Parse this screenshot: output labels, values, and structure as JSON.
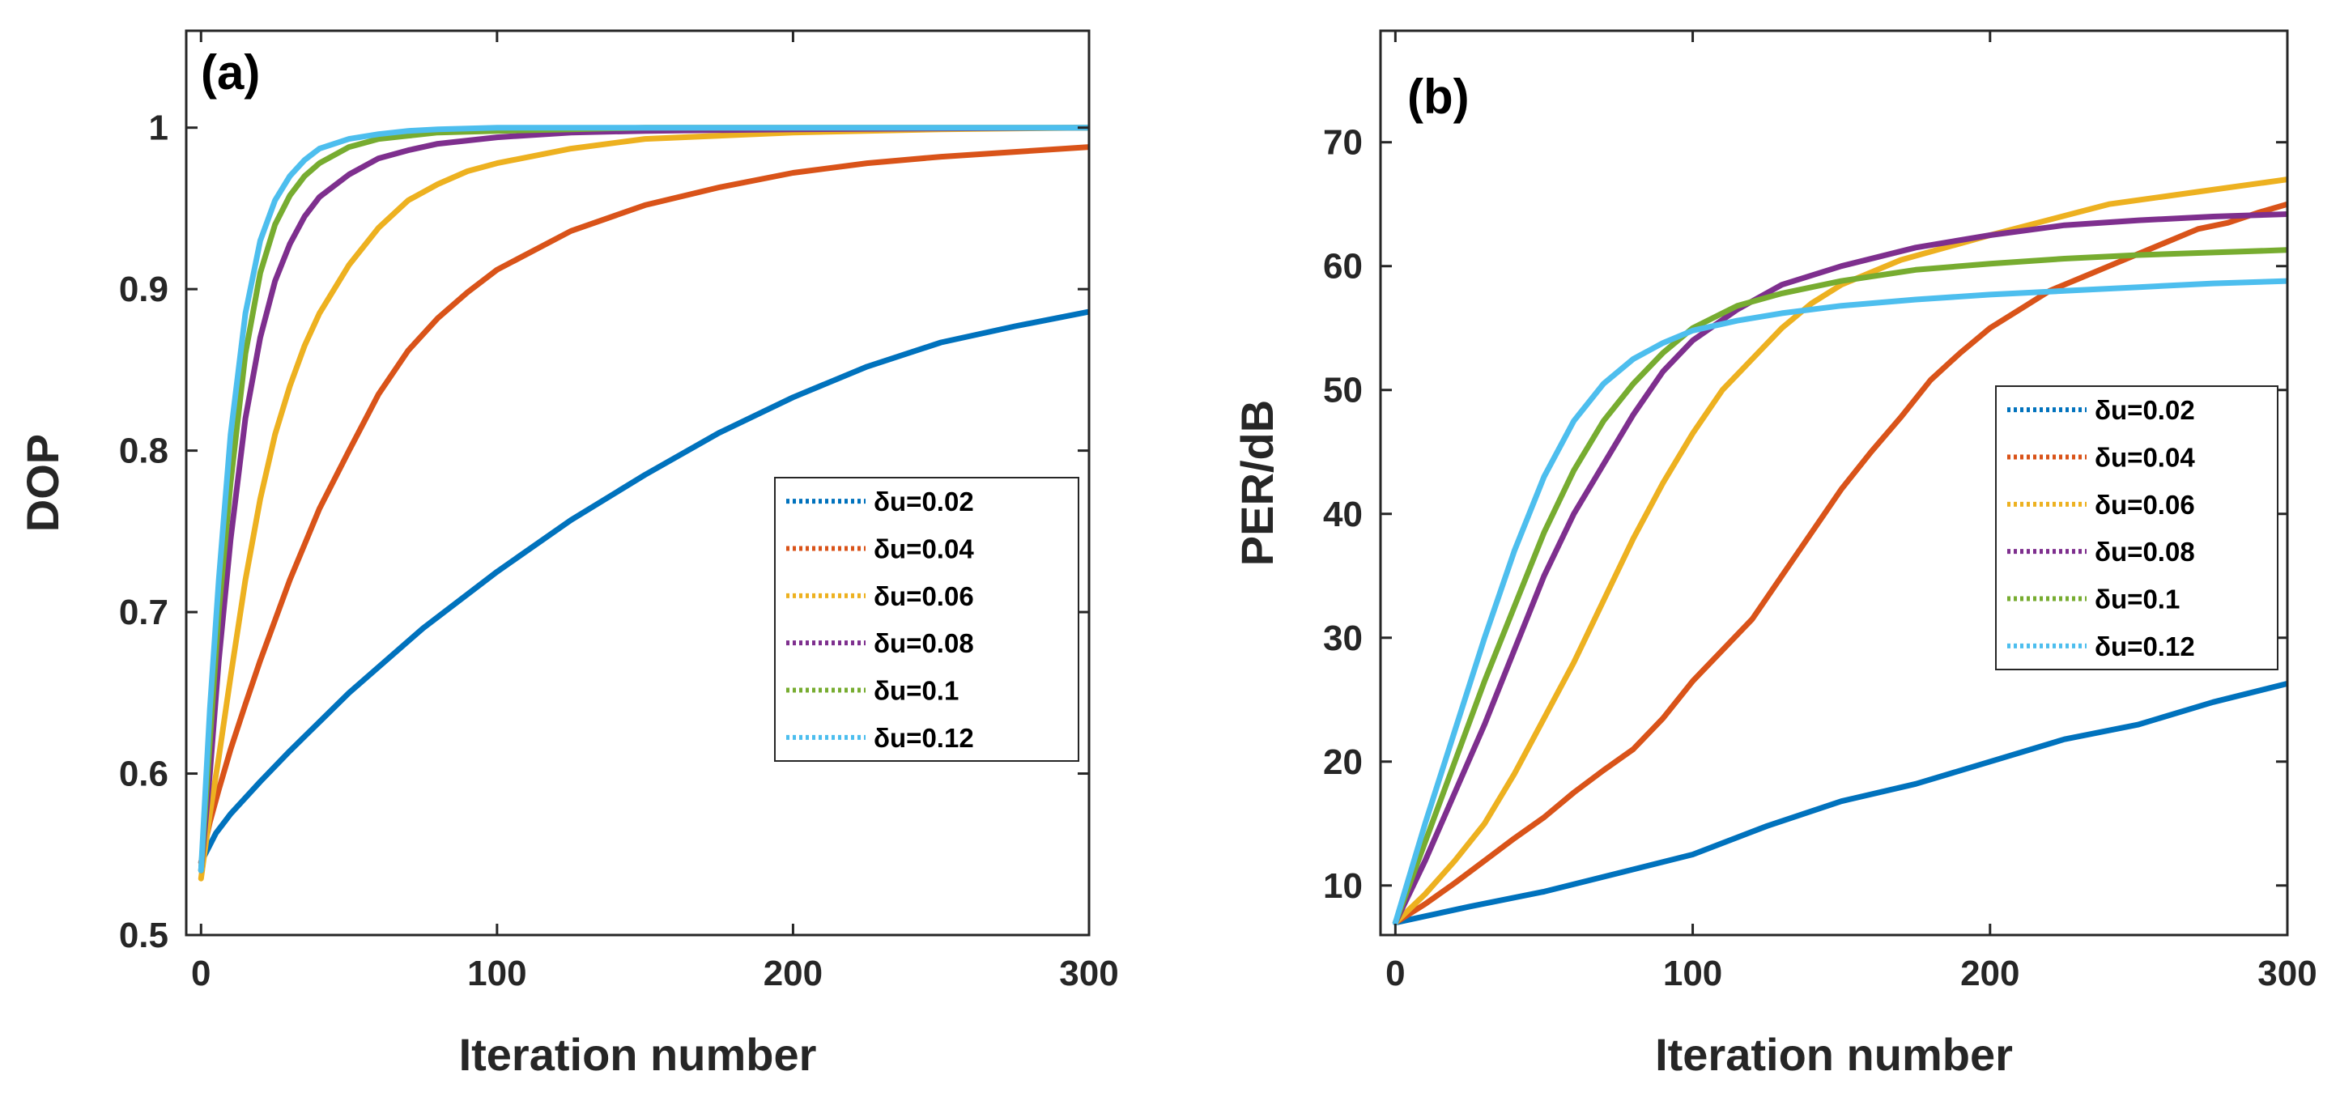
{
  "chart_data": [
    {
      "type": "line",
      "panel_label": "(a)",
      "xlabel": "Iteration number",
      "ylabel": "DOP",
      "xlim": [
        -5,
        300
      ],
      "ylim": [
        0.5,
        1.06
      ],
      "xticks": [
        0,
        100,
        200,
        300
      ],
      "xtick_labels": [
        "0",
        "100",
        "200",
        "300"
      ],
      "yticks": [
        0.5,
        0.6,
        0.7,
        0.8,
        0.9,
        1.0
      ],
      "ytick_labels": [
        "0.5",
        "0.6",
        "0.7",
        "0.8",
        "0.9",
        "1"
      ],
      "grid": false,
      "legend_position": "center-right",
      "series": [
        {
          "name": "δu=0.02",
          "color": "#0072BD",
          "x": [
            0,
            5,
            10,
            20,
            30,
            50,
            75,
            100,
            125,
            150,
            175,
            200,
            225,
            250,
            275,
            300
          ],
          "y": [
            0.545,
            0.563,
            0.575,
            0.595,
            0.614,
            0.65,
            0.69,
            0.725,
            0.757,
            0.785,
            0.811,
            0.833,
            0.852,
            0.867,
            0.877,
            0.886
          ]
        },
        {
          "name": "δu=0.04",
          "color": "#D95319",
          "x": [
            0,
            3,
            6,
            10,
            15,
            20,
            30,
            40,
            50,
            60,
            70,
            80,
            90,
            100,
            125,
            150,
            175,
            200,
            225,
            250,
            275,
            300
          ],
          "y": [
            0.545,
            0.57,
            0.59,
            0.615,
            0.643,
            0.67,
            0.72,
            0.764,
            0.8,
            0.835,
            0.862,
            0.882,
            0.898,
            0.912,
            0.936,
            0.952,
            0.963,
            0.972,
            0.978,
            0.982,
            0.985,
            0.988
          ]
        },
        {
          "name": "δu=0.06",
          "color": "#EDB120",
          "x": [
            0,
            3,
            6,
            10,
            15,
            20,
            25,
            30,
            35,
            40,
            50,
            60,
            70,
            80,
            90,
            100,
            125,
            150,
            200,
            250,
            300
          ],
          "y": [
            0.535,
            0.575,
            0.61,
            0.66,
            0.72,
            0.77,
            0.81,
            0.84,
            0.865,
            0.885,
            0.915,
            0.938,
            0.955,
            0.965,
            0.973,
            0.978,
            0.987,
            0.993,
            0.997,
            0.999,
            1.0
          ]
        },
        {
          "name": "δu=0.08",
          "color": "#7E2F8E",
          "x": [
            0,
            3,
            6,
            10,
            15,
            20,
            25,
            30,
            35,
            40,
            50,
            60,
            70,
            80,
            100,
            125,
            150,
            200,
            300
          ],
          "y": [
            0.54,
            0.6,
            0.67,
            0.745,
            0.82,
            0.87,
            0.905,
            0.928,
            0.945,
            0.957,
            0.971,
            0.981,
            0.986,
            0.99,
            0.994,
            0.997,
            0.998,
            0.999,
            1.0
          ]
        },
        {
          "name": "δu=0.1",
          "color": "#77AC30",
          "x": [
            0,
            3,
            6,
            10,
            15,
            20,
            25,
            30,
            35,
            40,
            50,
            60,
            70,
            80,
            100,
            125,
            150,
            200,
            300
          ],
          "y": [
            0.54,
            0.62,
            0.7,
            0.78,
            0.86,
            0.91,
            0.94,
            0.958,
            0.97,
            0.978,
            0.988,
            0.993,
            0.995,
            0.997,
            0.998,
            0.999,
            1.0,
            1.0,
            1.0
          ]
        },
        {
          "name": "δu=0.12",
          "color": "#4DBEEE",
          "x": [
            0,
            3,
            6,
            10,
            15,
            20,
            25,
            30,
            35,
            40,
            50,
            60,
            70,
            80,
            100,
            125,
            150,
            200,
            300
          ],
          "y": [
            0.54,
            0.64,
            0.72,
            0.81,
            0.885,
            0.93,
            0.955,
            0.97,
            0.98,
            0.987,
            0.993,
            0.996,
            0.998,
            0.999,
            1.0,
            1.0,
            1.0,
            1.0,
            1.0
          ]
        }
      ]
    },
    {
      "type": "line",
      "panel_label": "(b)",
      "xlabel": "Iteration number",
      "ylabel": "PER/dB",
      "xlim": [
        -5,
        300
      ],
      "ylim": [
        6,
        79
      ],
      "xticks": [
        0,
        100,
        200,
        300
      ],
      "xtick_labels": [
        "0",
        "100",
        "200",
        "300"
      ],
      "yticks": [
        10,
        20,
        30,
        40,
        50,
        60,
        70
      ],
      "ytick_labels": [
        "10",
        "20",
        "30",
        "40",
        "50",
        "60",
        "70"
      ],
      "grid": false,
      "legend_position": "center-right",
      "series": [
        {
          "name": "δu=0.02",
          "color": "#0072BD",
          "x": [
            0,
            25,
            50,
            75,
            100,
            125,
            150,
            175,
            200,
            225,
            250,
            275,
            300
          ],
          "y": [
            7,
            8.3,
            9.5,
            11,
            12.5,
            14.8,
            16.8,
            18.2,
            20,
            21.8,
            23,
            24.8,
            26.3
          ]
        },
        {
          "name": "δu=0.04",
          "color": "#D95319",
          "x": [
            0,
            10,
            20,
            30,
            40,
            50,
            60,
            70,
            80,
            90,
            100,
            110,
            120,
            130,
            140,
            150,
            160,
            170,
            180,
            190,
            200,
            210,
            220,
            230,
            240,
            250,
            260,
            270,
            280,
            290,
            300
          ],
          "y": [
            7,
            8.5,
            10.2,
            12,
            13.8,
            15.5,
            17.5,
            19.3,
            21,
            23.5,
            26.5,
            29,
            31.5,
            35,
            38.5,
            42,
            45,
            47.8,
            50.8,
            53,
            55,
            56.5,
            58,
            59,
            60,
            61,
            62,
            63,
            63.5,
            64.3,
            65
          ]
        },
        {
          "name": "δu=0.06",
          "color": "#EDB120",
          "x": [
            0,
            10,
            20,
            30,
            40,
            50,
            60,
            70,
            80,
            90,
            100,
            110,
            120,
            130,
            140,
            150,
            170,
            200,
            240,
            270,
            300
          ],
          "y": [
            7,
            9.3,
            12,
            15,
            19,
            23.5,
            28,
            33,
            38,
            42.5,
            46.5,
            50,
            52.5,
            55,
            57,
            58.5,
            60.5,
            62.5,
            65,
            66,
            67
          ]
        },
        {
          "name": "δu=0.08",
          "color": "#7E2F8E",
          "x": [
            0,
            10,
            20,
            30,
            40,
            50,
            60,
            70,
            80,
            90,
            100,
            115,
            130,
            150,
            175,
            200,
            225,
            250,
            275,
            300
          ],
          "y": [
            7,
            12,
            17.5,
            23,
            29,
            35,
            40,
            44,
            48,
            51.5,
            54,
            56.5,
            58.5,
            60,
            61.5,
            62.5,
            63.3,
            63.7,
            64,
            64.2
          ]
        },
        {
          "name": "δu=0.1",
          "color": "#77AC30",
          "x": [
            0,
            10,
            20,
            30,
            40,
            50,
            60,
            70,
            80,
            90,
            100,
            115,
            130,
            150,
            175,
            200,
            225,
            250,
            275,
            300
          ],
          "y": [
            7,
            13.5,
            20,
            26.5,
            32.5,
            38.5,
            43.5,
            47.5,
            50.5,
            53,
            55,
            56.8,
            57.8,
            58.8,
            59.7,
            60.2,
            60.6,
            60.9,
            61.1,
            61.3
          ]
        },
        {
          "name": "δu=0.12",
          "color": "#4DBEEE",
          "x": [
            0,
            10,
            20,
            30,
            40,
            50,
            60,
            70,
            80,
            90,
            100,
            115,
            130,
            150,
            175,
            200,
            225,
            250,
            275,
            300
          ],
          "y": [
            7,
            15,
            22.5,
            30,
            37,
            43,
            47.5,
            50.5,
            52.5,
            53.8,
            54.8,
            55.6,
            56.2,
            56.8,
            57.3,
            57.7,
            58,
            58.3,
            58.6,
            58.8
          ]
        }
      ]
    }
  ]
}
